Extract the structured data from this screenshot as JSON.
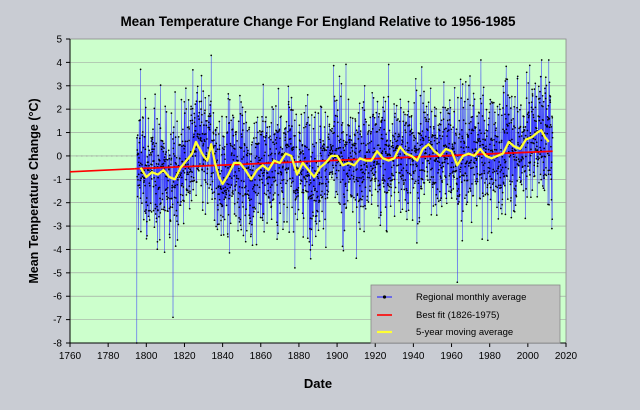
{
  "chart_data": {
    "type": "line",
    "title": "Mean Temperature Change For England Relative to 1956-1985",
    "xlabel": "Date",
    "ylabel": "Mean  Temperature  Change  (°C)",
    "xlim": [
      1760,
      2020
    ],
    "ylim": [
      -8,
      5
    ],
    "x_ticks": [
      "1760",
      "1780",
      "1800",
      "1820",
      "1840",
      "1860",
      "1880",
      "1900",
      "1920",
      "1940",
      "1960",
      "1980",
      "2000",
      "2020"
    ],
    "y_ticks": [
      "5",
      "4",
      "3",
      "2",
      "1",
      "0",
      "-1",
      "-2",
      "-3",
      "-4",
      "-5",
      "-6",
      "-7",
      "-8"
    ],
    "legend_position": "bottom-right",
    "colors": {
      "plot_background": "#ccffcc",
      "figure_background": "#c9ccd3",
      "monthly": "#3333ff",
      "best_fit": "#ff0000",
      "moving_average": "#ffff33",
      "legend_background": "#c0c0c0"
    },
    "series": [
      {
        "name": "Regional monthly average",
        "kind": "monthly-scatter-line",
        "x_range": [
          1795,
          2013
        ],
        "approx_mean": -0.3,
        "approx_range": [
          -8,
          4.3
        ],
        "notable_points": [
          {
            "x": 1795,
            "y": -8.0
          },
          {
            "x": 1797,
            "y": 3.7
          },
          {
            "x": 1814,
            "y": -6.9
          },
          {
            "x": 1834,
            "y": 4.3
          },
          {
            "x": 1963,
            "y": -5.4
          },
          {
            "x": 2011,
            "y": 4.1
          }
        ]
      },
      {
        "name": "Best fit (1826-1975)",
        "kind": "line",
        "points": [
          {
            "x": 1760,
            "y": -0.68
          },
          {
            "x": 1794,
            "y": -0.55
          },
          {
            "x": 2013,
            "y": 0.2
          }
        ]
      },
      {
        "name": "5-year moving average",
        "kind": "line",
        "points": [
          {
            "x": 1797,
            "y": -0.5
          },
          {
            "x": 1800,
            "y": -0.9
          },
          {
            "x": 1803,
            "y": -0.7
          },
          {
            "x": 1806,
            "y": -0.8
          },
          {
            "x": 1809,
            "y": -0.6
          },
          {
            "x": 1812,
            "y": -0.9
          },
          {
            "x": 1815,
            "y": -1.0
          },
          {
            "x": 1818,
            "y": -0.5
          },
          {
            "x": 1821,
            "y": -0.2
          },
          {
            "x": 1824,
            "y": 0.1
          },
          {
            "x": 1826,
            "y": 0.6
          },
          {
            "x": 1828,
            "y": 0.3
          },
          {
            "x": 1830,
            "y": 0.0
          },
          {
            "x": 1832,
            "y": -0.2
          },
          {
            "x": 1834,
            "y": 0.5
          },
          {
            "x": 1836,
            "y": -0.3
          },
          {
            "x": 1838,
            "y": -0.9
          },
          {
            "x": 1840,
            "y": -1.2
          },
          {
            "x": 1843,
            "y": -0.8
          },
          {
            "x": 1846,
            "y": -0.3
          },
          {
            "x": 1849,
            "y": -0.3
          },
          {
            "x": 1852,
            "y": -0.6
          },
          {
            "x": 1855,
            "y": -1.0
          },
          {
            "x": 1858,
            "y": -0.6
          },
          {
            "x": 1861,
            "y": -0.4
          },
          {
            "x": 1864,
            "y": -0.6
          },
          {
            "x": 1867,
            "y": -0.2
          },
          {
            "x": 1870,
            "y": -0.3
          },
          {
            "x": 1873,
            "y": 0.1
          },
          {
            "x": 1876,
            "y": 0.0
          },
          {
            "x": 1879,
            "y": -0.8
          },
          {
            "x": 1882,
            "y": -0.3
          },
          {
            "x": 1885,
            "y": -0.6
          },
          {
            "x": 1888,
            "y": -0.9
          },
          {
            "x": 1891,
            "y": -0.5
          },
          {
            "x": 1894,
            "y": -0.3
          },
          {
            "x": 1897,
            "y": 0.0
          },
          {
            "x": 1900,
            "y": 0.0
          },
          {
            "x": 1903,
            "y": -0.4
          },
          {
            "x": 1906,
            "y": -0.3
          },
          {
            "x": 1909,
            "y": -0.4
          },
          {
            "x": 1912,
            "y": -0.1
          },
          {
            "x": 1915,
            "y": -0.2
          },
          {
            "x": 1918,
            "y": -0.2
          },
          {
            "x": 1921,
            "y": 0.2
          },
          {
            "x": 1924,
            "y": -0.1
          },
          {
            "x": 1927,
            "y": -0.2
          },
          {
            "x": 1930,
            "y": -0.1
          },
          {
            "x": 1933,
            "y": 0.4
          },
          {
            "x": 1936,
            "y": 0.1
          },
          {
            "x": 1939,
            "y": 0.0
          },
          {
            "x": 1942,
            "y": -0.2
          },
          {
            "x": 1945,
            "y": 0.3
          },
          {
            "x": 1948,
            "y": 0.5
          },
          {
            "x": 1951,
            "y": 0.2
          },
          {
            "x": 1954,
            "y": 0.0
          },
          {
            "x": 1957,
            "y": 0.3
          },
          {
            "x": 1960,
            "y": 0.2
          },
          {
            "x": 1963,
            "y": -0.4
          },
          {
            "x": 1966,
            "y": 0.0
          },
          {
            "x": 1969,
            "y": 0.1
          },
          {
            "x": 1972,
            "y": 0.0
          },
          {
            "x": 1975,
            "y": 0.3
          },
          {
            "x": 1978,
            "y": 0.0
          },
          {
            "x": 1981,
            "y": -0.1
          },
          {
            "x": 1984,
            "y": 0.0
          },
          {
            "x": 1987,
            "y": 0.1
          },
          {
            "x": 1990,
            "y": 0.6
          },
          {
            "x": 1993,
            "y": 0.4
          },
          {
            "x": 1996,
            "y": 0.3
          },
          {
            "x": 1999,
            "y": 0.7
          },
          {
            "x": 2002,
            "y": 0.8
          },
          {
            "x": 2005,
            "y": 1.0
          },
          {
            "x": 2007,
            "y": 1.1
          },
          {
            "x": 2009,
            "y": 0.8
          },
          {
            "x": 2011,
            "y": 0.6
          }
        ]
      }
    ]
  }
}
